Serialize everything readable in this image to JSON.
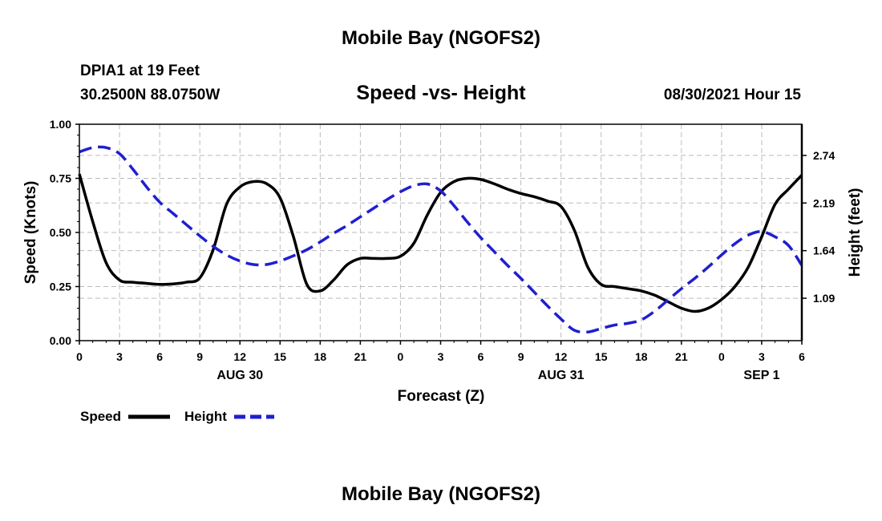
{
  "page": {
    "title_top": "Mobile Bay (NGOFS2)",
    "title_bottom": "Mobile Bay (NGOFS2)",
    "station_line1": "DPIA1 at 19 Feet",
    "station_line2": "30.2500N  88.0750W",
    "chart_title": "Speed -vs- Height",
    "datetime": "08/30/2021 Hour 15"
  },
  "colors": {
    "speed": "#000000",
    "height": "#1f1fd0",
    "grid": "#bbbbbb"
  },
  "chart_data": {
    "type": "line",
    "title": "Speed -vs- Height",
    "xlabel": "Forecast (Z)",
    "ylabel_left": "Speed (Knots)",
    "ylabel_right": "Height (feet)",
    "x_range_hours": [
      0,
      54
    ],
    "x_tick_hours": [
      0,
      3,
      6,
      9,
      12,
      15,
      18,
      21,
      24,
      27,
      30,
      33,
      36,
      39,
      42,
      45,
      48,
      51,
      54
    ],
    "x_tick_labels": [
      "0",
      "3",
      "6",
      "9",
      "12",
      "15",
      "18",
      "21",
      "0",
      "3",
      "6",
      "9",
      "12",
      "15",
      "18",
      "21",
      "0",
      "3",
      "6"
    ],
    "date_labels": [
      {
        "hour": 12,
        "text": "AUG 30"
      },
      {
        "hour": 36,
        "text": "AUG 31"
      },
      {
        "hour": 51,
        "text": "SEP 1"
      }
    ],
    "y_left": {
      "range": [
        0,
        1.0
      ],
      "ticks": [
        0,
        0.25,
        0.5,
        0.75,
        1.0
      ],
      "tick_labels": [
        "0.00",
        "0.25",
        "0.50",
        "0.75",
        "1.00"
      ]
    },
    "y_right": {
      "range": [
        0.6,
        3.1
      ],
      "ticks": [
        1.09,
        1.64,
        2.19,
        2.74
      ],
      "tick_labels": [
        "1.09",
        "1.64",
        "2.19",
        "2.74"
      ]
    },
    "grid": true,
    "legend_position": "bottom-left",
    "series": [
      {
        "name": "Speed",
        "axis": "left",
        "style": "solid",
        "x": [
          0,
          1,
          2,
          3,
          4,
          5,
          6,
          7,
          8,
          9,
          10,
          11,
          12,
          13,
          14,
          15,
          16,
          17,
          18,
          19,
          20,
          21,
          22,
          23,
          24,
          25,
          26,
          27,
          28,
          29,
          30,
          31,
          32,
          33,
          34,
          35,
          36,
          37,
          38,
          39,
          40,
          41,
          42,
          43,
          44,
          45,
          46,
          47,
          48,
          49,
          50,
          51,
          52,
          53,
          54
        ],
        "y": [
          0.77,
          0.55,
          0.36,
          0.28,
          0.27,
          0.265,
          0.26,
          0.262,
          0.27,
          0.29,
          0.42,
          0.63,
          0.71,
          0.735,
          0.725,
          0.66,
          0.48,
          0.26,
          0.23,
          0.28,
          0.35,
          0.38,
          0.38,
          0.38,
          0.39,
          0.45,
          0.58,
          0.685,
          0.735,
          0.75,
          0.745,
          0.725,
          0.7,
          0.68,
          0.665,
          0.645,
          0.62,
          0.51,
          0.34,
          0.26,
          0.25,
          0.24,
          0.23,
          0.21,
          0.18,
          0.15,
          0.135,
          0.15,
          0.19,
          0.25,
          0.34,
          0.48,
          0.63,
          0.7,
          0.765
        ]
      },
      {
        "name": "Height",
        "axis": "right",
        "style": "dashed",
        "x": [
          0,
          1,
          2,
          3,
          4,
          5,
          6,
          7,
          8,
          9,
          10,
          11,
          12,
          13,
          14,
          15,
          16,
          17,
          18,
          19,
          20,
          21,
          22,
          23,
          24,
          25,
          26,
          27,
          28,
          29,
          30,
          31,
          32,
          33,
          34,
          35,
          36,
          37,
          38,
          39,
          40,
          41,
          42,
          43,
          44,
          45,
          46,
          47,
          48,
          49,
          50,
          51,
          52,
          53,
          54
        ],
        "y": [
          2.78,
          2.83,
          2.83,
          2.76,
          2.58,
          2.38,
          2.2,
          2.07,
          1.94,
          1.81,
          1.69,
          1.59,
          1.52,
          1.48,
          1.48,
          1.52,
          1.58,
          1.65,
          1.74,
          1.84,
          1.93,
          2.03,
          2.13,
          2.23,
          2.32,
          2.39,
          2.41,
          2.33,
          2.16,
          1.97,
          1.79,
          1.63,
          1.47,
          1.32,
          1.16,
          1.0,
          0.85,
          0.72,
          0.7,
          0.74,
          0.78,
          0.8,
          0.84,
          0.94,
          1.07,
          1.2,
          1.32,
          1.45,
          1.59,
          1.72,
          1.82,
          1.86,
          1.8,
          1.7,
          1.47
        ]
      }
    ]
  }
}
